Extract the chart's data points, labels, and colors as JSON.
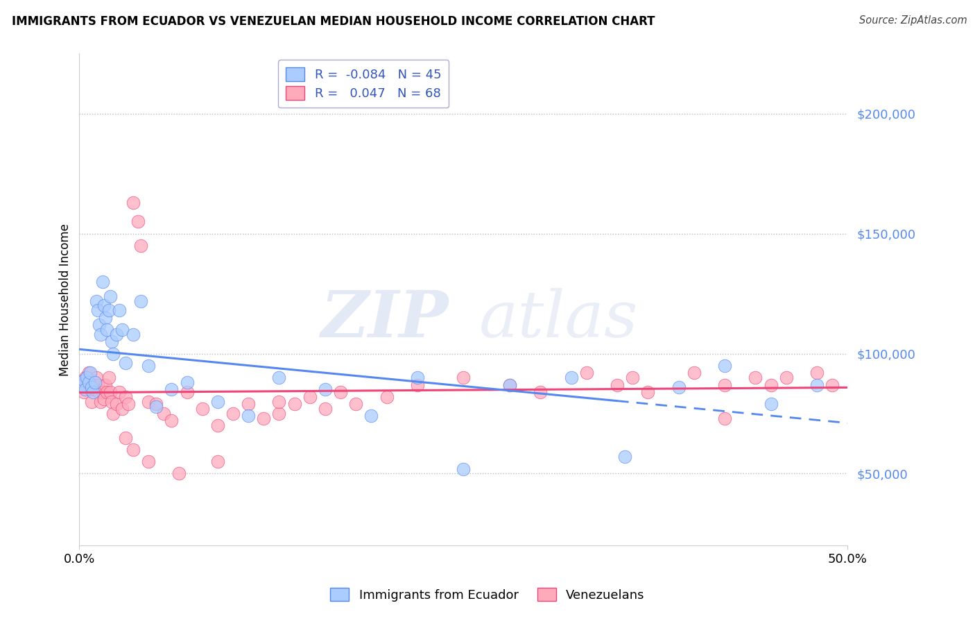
{
  "title": "IMMIGRANTS FROM ECUADOR VS VENEZUELAN MEDIAN HOUSEHOLD INCOME CORRELATION CHART",
  "source": "Source: ZipAtlas.com",
  "ylabel": "Median Household Income",
  "yticks": [
    50000,
    100000,
    150000,
    200000
  ],
  "ytick_labels": [
    "$50,000",
    "$100,000",
    "$150,000",
    "$200,000"
  ],
  "xlim": [
    0.0,
    50.0
  ],
  "ylim": [
    20000,
    225000
  ],
  "ecuador_R": -0.084,
  "ecuador_N": 45,
  "venezuela_R": 0.047,
  "venezuela_N": 68,
  "ecuador_color": "#aaccff",
  "venezuela_color": "#ffaabb",
  "ecuador_line_color": "#5588ee",
  "venezuela_line_color": "#ee4477",
  "watermark_zip": "ZIP",
  "watermark_atlas": "atlas",
  "legend_label_1": "Immigrants from Ecuador",
  "legend_label_2": "Venezuelans",
  "ecuador_x": [
    0.2,
    0.3,
    0.4,
    0.5,
    0.6,
    0.7,
    0.8,
    0.9,
    1.0,
    1.1,
    1.2,
    1.3,
    1.4,
    1.5,
    1.6,
    1.7,
    1.8,
    1.9,
    2.0,
    2.1,
    2.2,
    2.4,
    2.6,
    2.8,
    3.0,
    3.5,
    4.0,
    4.5,
    5.0,
    6.0,
    7.0,
    9.0,
    11.0,
    13.0,
    16.0,
    19.0,
    22.0,
    25.0,
    28.0,
    32.0,
    35.5,
    39.0,
    42.0,
    45.0,
    48.0
  ],
  "ecuador_y": [
    87000,
    89000,
    85000,
    90000,
    88000,
    92000,
    86000,
    84000,
    88000,
    122000,
    118000,
    112000,
    108000,
    130000,
    120000,
    115000,
    110000,
    118000,
    124000,
    105000,
    100000,
    108000,
    118000,
    110000,
    96000,
    108000,
    122000,
    95000,
    78000,
    85000,
    88000,
    80000,
    74000,
    90000,
    85000,
    74000,
    90000,
    52000,
    87000,
    90000,
    57000,
    86000,
    95000,
    79000,
    87000
  ],
  "venezuela_x": [
    0.2,
    0.3,
    0.4,
    0.5,
    0.6,
    0.7,
    0.8,
    0.9,
    1.0,
    1.1,
    1.2,
    1.3,
    1.4,
    1.5,
    1.6,
    1.7,
    1.8,
    1.9,
    2.0,
    2.1,
    2.2,
    2.4,
    2.6,
    2.8,
    3.0,
    3.2,
    3.5,
    3.8,
    4.0,
    4.5,
    5.0,
    5.5,
    6.0,
    7.0,
    8.0,
    9.0,
    10.0,
    11.0,
    12.0,
    13.0,
    14.0,
    15.0,
    16.0,
    17.0,
    18.0,
    20.0,
    22.0,
    25.0,
    28.0,
    30.0,
    33.0,
    35.0,
    37.0,
    40.0,
    42.0,
    44.0,
    45.0,
    46.0,
    48.0,
    49.0,
    3.0,
    3.5,
    4.5,
    6.5,
    9.0,
    13.0,
    36.0,
    42.0
  ],
  "venezuela_y": [
    87000,
    84000,
    90000,
    88000,
    92000,
    85000,
    80000,
    87000,
    85000,
    90000,
    87000,
    84000,
    80000,
    84000,
    81000,
    87000,
    84000,
    90000,
    84000,
    80000,
    75000,
    79000,
    84000,
    77000,
    82000,
    79000,
    163000,
    155000,
    145000,
    80000,
    79000,
    75000,
    72000,
    84000,
    77000,
    70000,
    75000,
    79000,
    73000,
    75000,
    79000,
    82000,
    77000,
    84000,
    79000,
    82000,
    87000,
    90000,
    87000,
    84000,
    92000,
    87000,
    84000,
    92000,
    87000,
    90000,
    87000,
    90000,
    92000,
    87000,
    65000,
    60000,
    55000,
    50000,
    55000,
    80000,
    90000,
    73000
  ]
}
